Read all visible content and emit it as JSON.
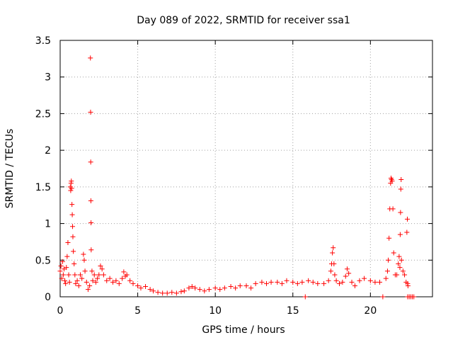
{
  "chart_data": {
    "type": "scatter",
    "title": "Day 089 of 2022, SRMTID for receiver ssa1",
    "xlabel": "GPS time / hours",
    "ylabel": "SRMTID / TECUs",
    "xlim": [
      0,
      24
    ],
    "ylim": [
      0,
      3.5
    ],
    "xticks": [
      0,
      5,
      10,
      15,
      20
    ],
    "yticks": [
      0,
      0.5,
      1,
      1.5,
      2,
      2.5,
      3,
      3.5
    ],
    "grid": true,
    "marker": "+",
    "series": [
      {
        "name": "ssa1",
        "color": "#ff0000",
        "points": [
          [
            0.0,
            0.35
          ],
          [
            0.05,
            0.42
          ],
          [
            0.1,
            0.25
          ],
          [
            0.15,
            0.48
          ],
          [
            0.2,
            0.3
          ],
          [
            0.25,
            0.38
          ],
          [
            0.3,
            0.22
          ],
          [
            0.35,
            0.18
          ],
          [
            0.4,
            0.4
          ],
          [
            0.45,
            0.55
          ],
          [
            0.5,
            0.74
          ],
          [
            0.55,
            0.3
          ],
          [
            0.6,
            0.2
          ],
          [
            0.65,
            1.5
          ],
          [
            0.68,
            1.45
          ],
          [
            0.7,
            1.55
          ],
          [
            0.72,
            1.58
          ],
          [
            0.74,
            1.48
          ],
          [
            0.76,
            1.26
          ],
          [
            0.78,
            1.12
          ],
          [
            0.8,
            0.96
          ],
          [
            0.82,
            0.82
          ],
          [
            0.85,
            0.62
          ],
          [
            0.9,
            0.45
          ],
          [
            0.95,
            0.3
          ],
          [
            1.0,
            0.18
          ],
          [
            1.1,
            0.22
          ],
          [
            1.2,
            0.15
          ],
          [
            1.3,
            0.3
          ],
          [
            1.4,
            0.25
          ],
          [
            1.5,
            0.58
          ],
          [
            1.55,
            0.5
          ],
          [
            1.6,
            0.35
          ],
          [
            1.7,
            0.2
          ],
          [
            1.8,
            0.1
          ],
          [
            1.9,
            0.15
          ],
          [
            1.95,
            3.26
          ],
          [
            1.96,
            2.52
          ],
          [
            1.97,
            1.84
          ],
          [
            1.98,
            1.31
          ],
          [
            1.99,
            1.01
          ],
          [
            2.0,
            0.64
          ],
          [
            2.05,
            0.35
          ],
          [
            2.1,
            0.22
          ],
          [
            2.2,
            0.3
          ],
          [
            2.3,
            0.2
          ],
          [
            2.4,
            0.25
          ],
          [
            2.5,
            0.3
          ],
          [
            2.6,
            0.42
          ],
          [
            2.7,
            0.38
          ],
          [
            2.8,
            0.3
          ],
          [
            3.0,
            0.22
          ],
          [
            3.2,
            0.25
          ],
          [
            3.4,
            0.2
          ],
          [
            3.6,
            0.22
          ],
          [
            3.8,
            0.18
          ],
          [
            4.0,
            0.25
          ],
          [
            4.1,
            0.34
          ],
          [
            4.2,
            0.28
          ],
          [
            4.3,
            0.3
          ],
          [
            4.5,
            0.22
          ],
          [
            4.7,
            0.18
          ],
          [
            5.0,
            0.15
          ],
          [
            5.2,
            0.12
          ],
          [
            5.5,
            0.14
          ],
          [
            5.8,
            0.1
          ],
          [
            6.0,
            0.08
          ],
          [
            6.3,
            0.06
          ],
          [
            6.6,
            0.05
          ],
          [
            6.9,
            0.05
          ],
          [
            7.2,
            0.06
          ],
          [
            7.5,
            0.05
          ],
          [
            7.8,
            0.07
          ],
          [
            8.0,
            0.08
          ],
          [
            8.3,
            0.12
          ],
          [
            8.5,
            0.14
          ],
          [
            8.7,
            0.12
          ],
          [
            9.0,
            0.1
          ],
          [
            9.3,
            0.08
          ],
          [
            9.6,
            0.1
          ],
          [
            10.0,
            0.12
          ],
          [
            10.3,
            0.1
          ],
          [
            10.6,
            0.12
          ],
          [
            11.0,
            0.14
          ],
          [
            11.3,
            0.12
          ],
          [
            11.6,
            0.15
          ],
          [
            12.0,
            0.15
          ],
          [
            12.3,
            0.12
          ],
          [
            12.6,
            0.18
          ],
          [
            13.0,
            0.2
          ],
          [
            13.3,
            0.18
          ],
          [
            13.6,
            0.2
          ],
          [
            14.0,
            0.2
          ],
          [
            14.3,
            0.18
          ],
          [
            14.6,
            0.22
          ],
          [
            15.0,
            0.2
          ],
          [
            15.3,
            0.18
          ],
          [
            15.6,
            0.2
          ],
          [
            15.8,
            0.0
          ],
          [
            16.0,
            0.22
          ],
          [
            16.3,
            0.2
          ],
          [
            16.6,
            0.18
          ],
          [
            17.0,
            0.18
          ],
          [
            17.3,
            0.22
          ],
          [
            17.45,
            0.35
          ],
          [
            17.5,
            0.45
          ],
          [
            17.55,
            0.6
          ],
          [
            17.6,
            0.67
          ],
          [
            17.65,
            0.45
          ],
          [
            17.7,
            0.3
          ],
          [
            17.8,
            0.22
          ],
          [
            18.0,
            0.18
          ],
          [
            18.2,
            0.2
          ],
          [
            18.4,
            0.28
          ],
          [
            18.5,
            0.38
          ],
          [
            18.6,
            0.32
          ],
          [
            18.8,
            0.2
          ],
          [
            19.0,
            0.15
          ],
          [
            19.3,
            0.22
          ],
          [
            19.6,
            0.25
          ],
          [
            20.0,
            0.22
          ],
          [
            20.3,
            0.2
          ],
          [
            20.6,
            0.2
          ],
          [
            20.8,
            0.0
          ],
          [
            21.0,
            0.25
          ],
          [
            21.1,
            0.35
          ],
          [
            21.15,
            0.5
          ],
          [
            21.2,
            0.8
          ],
          [
            21.25,
            1.2
          ],
          [
            21.3,
            1.55
          ],
          [
            21.33,
            1.62
          ],
          [
            21.36,
            1.6
          ],
          [
            21.4,
            1.58
          ],
          [
            21.45,
            1.2
          ],
          [
            21.5,
            0.6
          ],
          [
            21.6,
            0.3
          ],
          [
            21.7,
            0.3
          ],
          [
            21.8,
            0.45
          ],
          [
            21.85,
            0.55
          ],
          [
            21.9,
            0.4
          ],
          [
            21.92,
            0.85
          ],
          [
            21.94,
            1.15
          ],
          [
            21.96,
            1.47
          ],
          [
            21.98,
            1.6
          ],
          [
            22.0,
            0.5
          ],
          [
            22.1,
            0.35
          ],
          [
            22.2,
            0.3
          ],
          [
            22.3,
            0.2
          ],
          [
            22.35,
            0.88
          ],
          [
            22.38,
            1.06
          ],
          [
            22.4,
            0.0
          ],
          [
            22.5,
            0.0
          ],
          [
            22.6,
            0.0
          ],
          [
            22.7,
            0.0
          ],
          [
            22.8,
            0.0
          ],
          [
            22.4,
            0.18
          ],
          [
            22.42,
            0.15
          ]
        ]
      }
    ]
  }
}
